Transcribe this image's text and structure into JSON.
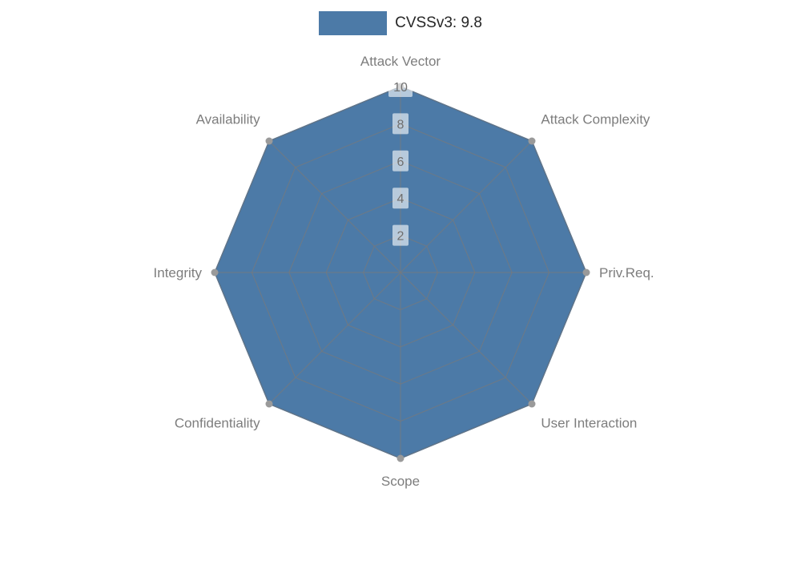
{
  "legend": {
    "label": "CVSSv3: 9.8",
    "swatch_color": "#4c7aa7"
  },
  "chart_data": {
    "type": "radar",
    "title": "",
    "categories": [
      "Attack Vector",
      "Attack Complexity",
      "Priv.Req.",
      "User Interaction",
      "Scope",
      "Confidentiality",
      "Integrity",
      "Availability"
    ],
    "series": [
      {
        "name": "CVSSv3: 9.8",
        "values": [
          10,
          10,
          10,
          10,
          10,
          10,
          10,
          10
        ],
        "fill_color": "#4c7aa7",
        "edge_color": "#416d9a"
      }
    ],
    "ticks": [
      2,
      4,
      6,
      8,
      10
    ],
    "tick_labels": [
      "2",
      "4",
      "6",
      "8",
      "10"
    ],
    "rlim": [
      0,
      10
    ],
    "grid": true,
    "grid_color": "#7a7a7a",
    "marker_color": "#9a9a9a",
    "tick_label_bg": "rgba(255,255,255,0.6)",
    "legend_position": "top"
  }
}
